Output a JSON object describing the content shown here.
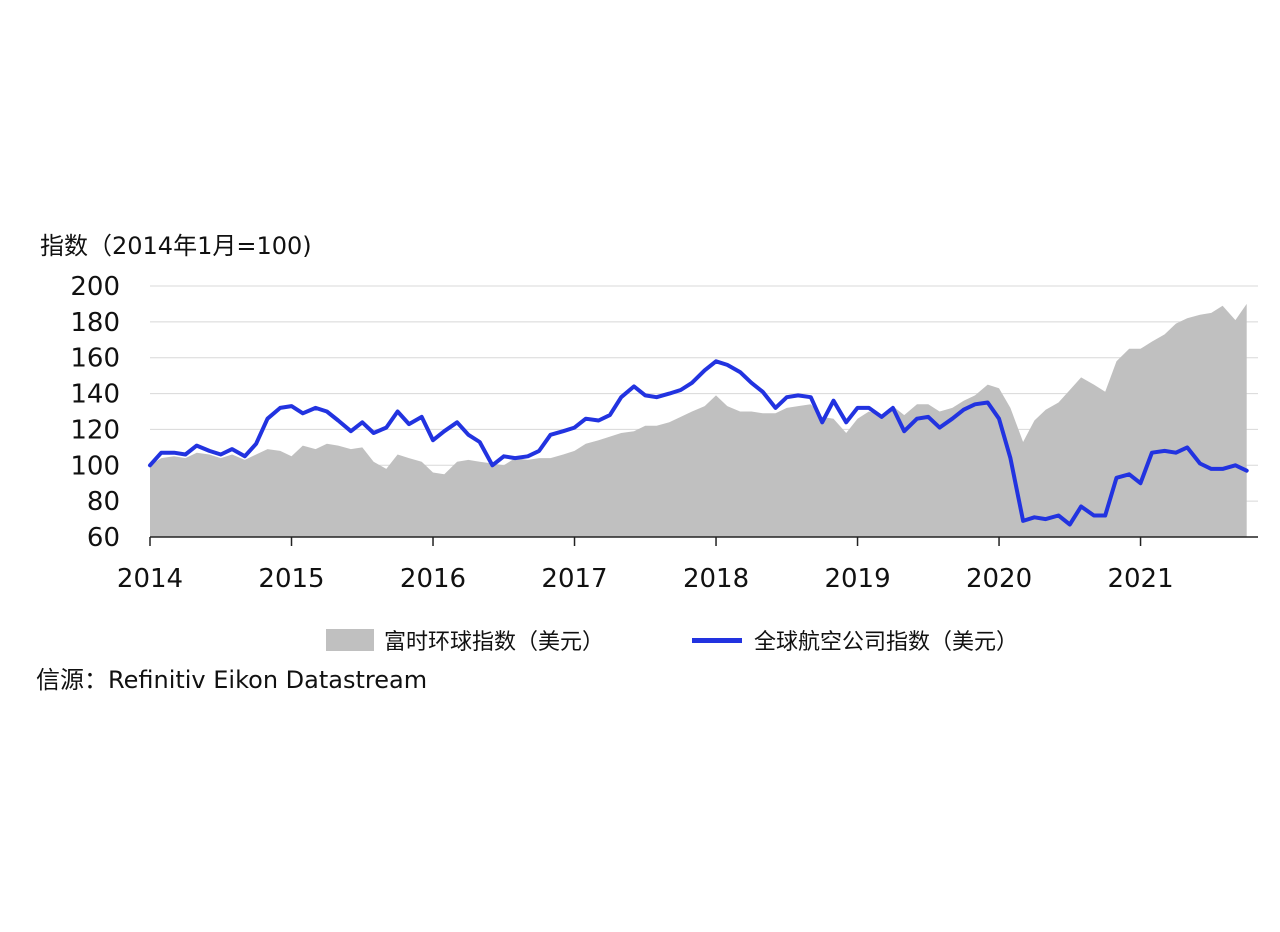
{
  "chart_data": {
    "type": "area",
    "ylabel": "指数（2014年1月=100)",
    "source": "信源：Refinitiv Eikon Datastream",
    "ylim": [
      60,
      200
    ],
    "yticks": [
      60,
      80,
      100,
      120,
      140,
      160,
      180,
      200
    ],
    "xticks": [
      "2014",
      "2015",
      "2016",
      "2017",
      "2018",
      "2019",
      "2020",
      "2021"
    ],
    "xrange": [
      2014.0,
      2021.83
    ],
    "grid": true,
    "legend_position": "bottom",
    "series": [
      {
        "name": "富时环球指数（美元）",
        "kind": "area",
        "color": "#c0c0c0",
        "points": [
          [
            2014.0,
            100
          ],
          [
            2014.08,
            104
          ],
          [
            2014.17,
            105
          ],
          [
            2014.25,
            104
          ],
          [
            2014.33,
            107
          ],
          [
            2014.42,
            106
          ],
          [
            2014.5,
            104
          ],
          [
            2014.58,
            106
          ],
          [
            2014.67,
            103
          ],
          [
            2014.75,
            106
          ],
          [
            2014.83,
            109
          ],
          [
            2014.92,
            108
          ],
          [
            2015.0,
            105
          ],
          [
            2015.08,
            111
          ],
          [
            2015.17,
            109
          ],
          [
            2015.25,
            112
          ],
          [
            2015.33,
            111
          ],
          [
            2015.42,
            109
          ],
          [
            2015.5,
            110
          ],
          [
            2015.58,
            102
          ],
          [
            2015.67,
            98
          ],
          [
            2015.75,
            106
          ],
          [
            2015.83,
            104
          ],
          [
            2015.92,
            102
          ],
          [
            2016.0,
            96
          ],
          [
            2016.08,
            95
          ],
          [
            2016.17,
            102
          ],
          [
            2016.25,
            103
          ],
          [
            2016.33,
            102
          ],
          [
            2016.42,
            101
          ],
          [
            2016.5,
            100
          ],
          [
            2016.58,
            104
          ],
          [
            2016.67,
            103
          ],
          [
            2016.75,
            104
          ],
          [
            2016.83,
            104
          ],
          [
            2016.92,
            106
          ],
          [
            2017.0,
            108
          ],
          [
            2017.08,
            112
          ],
          [
            2017.17,
            114
          ],
          [
            2017.25,
            116
          ],
          [
            2017.33,
            118
          ],
          [
            2017.42,
            119
          ],
          [
            2017.5,
            122
          ],
          [
            2017.58,
            122
          ],
          [
            2017.67,
            124
          ],
          [
            2017.75,
            127
          ],
          [
            2017.83,
            130
          ],
          [
            2017.92,
            133
          ],
          [
            2018.0,
            139
          ],
          [
            2018.08,
            133
          ],
          [
            2018.17,
            130
          ],
          [
            2018.25,
            130
          ],
          [
            2018.33,
            129
          ],
          [
            2018.42,
            129
          ],
          [
            2018.5,
            132
          ],
          [
            2018.58,
            133
          ],
          [
            2018.67,
            134
          ],
          [
            2018.75,
            127
          ],
          [
            2018.83,
            126
          ],
          [
            2018.92,
            118
          ],
          [
            2019.0,
            126
          ],
          [
            2019.08,
            130
          ],
          [
            2019.17,
            128
          ],
          [
            2019.25,
            133
          ],
          [
            2019.33,
            128
          ],
          [
            2019.42,
            134
          ],
          [
            2019.5,
            134
          ],
          [
            2019.58,
            130
          ],
          [
            2019.67,
            132
          ],
          [
            2019.75,
            136
          ],
          [
            2019.83,
            139
          ],
          [
            2019.92,
            145
          ],
          [
            2020.0,
            143
          ],
          [
            2020.08,
            132
          ],
          [
            2020.17,
            113
          ],
          [
            2020.25,
            125
          ],
          [
            2020.33,
            131
          ],
          [
            2020.42,
            135
          ],
          [
            2020.5,
            142
          ],
          [
            2020.58,
            149
          ],
          [
            2020.67,
            145
          ],
          [
            2020.75,
            141
          ],
          [
            2020.83,
            158
          ],
          [
            2020.92,
            165
          ],
          [
            2021.0,
            165
          ],
          [
            2021.08,
            169
          ],
          [
            2021.17,
            173
          ],
          [
            2021.25,
            179
          ],
          [
            2021.33,
            182
          ],
          [
            2021.42,
            184
          ],
          [
            2021.5,
            185
          ],
          [
            2021.58,
            189
          ],
          [
            2021.67,
            181
          ],
          [
            2021.75,
            190
          ]
        ]
      },
      {
        "name": "全球航空公司指数（美元）",
        "kind": "line",
        "color": "#2233e0",
        "points": [
          [
            2014.0,
            100
          ],
          [
            2014.08,
            107
          ],
          [
            2014.17,
            107
          ],
          [
            2014.25,
            106
          ],
          [
            2014.33,
            111
          ],
          [
            2014.42,
            108
          ],
          [
            2014.5,
            106
          ],
          [
            2014.58,
            109
          ],
          [
            2014.67,
            105
          ],
          [
            2014.75,
            112
          ],
          [
            2014.83,
            126
          ],
          [
            2014.92,
            132
          ],
          [
            2015.0,
            133
          ],
          [
            2015.08,
            129
          ],
          [
            2015.17,
            132
          ],
          [
            2015.25,
            130
          ],
          [
            2015.33,
            125
          ],
          [
            2015.42,
            119
          ],
          [
            2015.5,
            124
          ],
          [
            2015.58,
            118
          ],
          [
            2015.67,
            121
          ],
          [
            2015.75,
            130
          ],
          [
            2015.83,
            123
          ],
          [
            2015.92,
            127
          ],
          [
            2016.0,
            114
          ],
          [
            2016.08,
            119
          ],
          [
            2016.17,
            124
          ],
          [
            2016.25,
            117
          ],
          [
            2016.33,
            113
          ],
          [
            2016.42,
            100
          ],
          [
            2016.5,
            105
          ],
          [
            2016.58,
            104
          ],
          [
            2016.67,
            105
          ],
          [
            2016.75,
            108
          ],
          [
            2016.83,
            117
          ],
          [
            2016.92,
            119
          ],
          [
            2017.0,
            121
          ],
          [
            2017.08,
            126
          ],
          [
            2017.17,
            125
          ],
          [
            2017.25,
            128
          ],
          [
            2017.33,
            138
          ],
          [
            2017.42,
            144
          ],
          [
            2017.5,
            139
          ],
          [
            2017.58,
            138
          ],
          [
            2017.67,
            140
          ],
          [
            2017.75,
            142
          ],
          [
            2017.83,
            146
          ],
          [
            2017.92,
            153
          ],
          [
            2018.0,
            158
          ],
          [
            2018.08,
            156
          ],
          [
            2018.17,
            152
          ],
          [
            2018.25,
            146
          ],
          [
            2018.33,
            141
          ],
          [
            2018.42,
            132
          ],
          [
            2018.5,
            138
          ],
          [
            2018.58,
            139
          ],
          [
            2018.67,
            138
          ],
          [
            2018.75,
            124
          ],
          [
            2018.83,
            136
          ],
          [
            2018.92,
            124
          ],
          [
            2019.0,
            132
          ],
          [
            2019.08,
            132
          ],
          [
            2019.17,
            127
          ],
          [
            2019.25,
            132
          ],
          [
            2019.33,
            119
          ],
          [
            2019.42,
            126
          ],
          [
            2019.5,
            127
          ],
          [
            2019.58,
            121
          ],
          [
            2019.67,
            126
          ],
          [
            2019.75,
            131
          ],
          [
            2019.83,
            134
          ],
          [
            2019.92,
            135
          ],
          [
            2020.0,
            126
          ],
          [
            2020.08,
            104
          ],
          [
            2020.17,
            69
          ],
          [
            2020.25,
            71
          ],
          [
            2020.33,
            70
          ],
          [
            2020.42,
            72
          ],
          [
            2020.5,
            67
          ],
          [
            2020.58,
            77
          ],
          [
            2020.67,
            72
          ],
          [
            2020.75,
            72
          ],
          [
            2020.83,
            93
          ],
          [
            2020.92,
            95
          ],
          [
            2021.0,
            90
          ],
          [
            2021.08,
            107
          ],
          [
            2021.17,
            108
          ],
          [
            2021.25,
            107
          ],
          [
            2021.33,
            110
          ],
          [
            2021.42,
            101
          ],
          [
            2021.5,
            98
          ],
          [
            2021.58,
            98
          ],
          [
            2021.67,
            100
          ],
          [
            2021.75,
            97
          ]
        ]
      }
    ]
  }
}
